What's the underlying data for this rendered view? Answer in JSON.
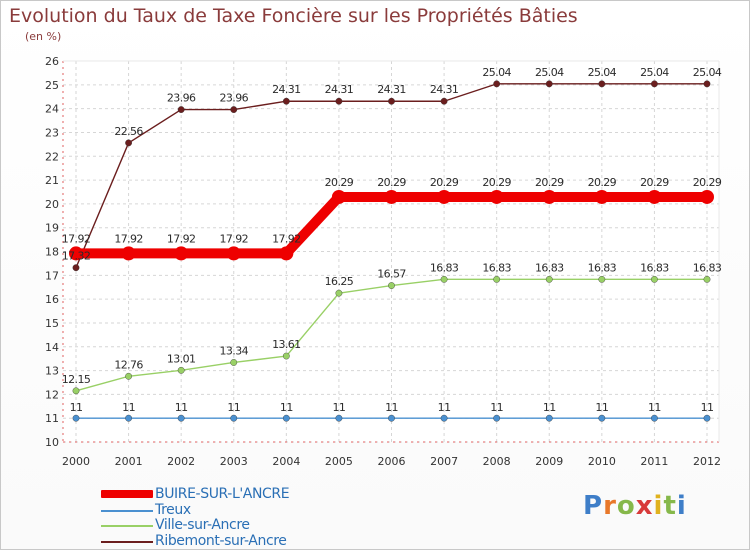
{
  "chart_data": {
    "type": "line",
    "title": "Evolution du Taux de Taxe Foncière sur les Propriétés Bâties",
    "ylabel": "(en %)",
    "xlabel": "",
    "ylim": [
      10,
      26
    ],
    "yticks": [
      "10",
      "11",
      "12",
      "13",
      "14",
      "15",
      "16",
      "17",
      "18",
      "19",
      "20",
      "21",
      "22",
      "23",
      "24",
      "25",
      "26"
    ],
    "x": [
      "2000",
      "2001",
      "2002",
      "2003",
      "2004",
      "2005",
      "2006",
      "2007",
      "2008",
      "2009",
      "2010",
      "2011",
      "2012"
    ],
    "grid": true,
    "legend_position": "bottom-left",
    "series": [
      {
        "name": "BUIRE-SUR-L'ANCRE",
        "color": "#ee0000",
        "values": [
          17.92,
          17.92,
          17.92,
          17.92,
          17.92,
          20.29,
          20.29,
          20.29,
          20.29,
          20.29,
          20.29,
          20.29,
          20.29
        ],
        "labels": [
          "17.92",
          "17.92",
          "17.92",
          "17.92",
          "17.92",
          "20.29",
          "20.29",
          "20.29",
          "20.29",
          "20.29",
          "20.29",
          "20.29",
          "20.29"
        ]
      },
      {
        "name": "Treux",
        "color": "#4a90d0",
        "values": [
          11,
          11,
          11,
          11,
          11,
          11,
          11,
          11,
          11,
          11,
          11,
          11,
          11
        ],
        "labels": [
          "11",
          "11",
          "11",
          "11",
          "11",
          "11",
          "11",
          "11",
          "11",
          "11",
          "11",
          "11",
          "11"
        ]
      },
      {
        "name": "Ville-sur-Ancre",
        "color": "#99d066",
        "values": [
          12.15,
          12.76,
          13.01,
          13.34,
          13.61,
          16.25,
          16.57,
          16.83,
          16.83,
          16.83,
          16.83,
          16.83,
          16.83
        ],
        "labels": [
          "12.15",
          "12.76",
          "13.01",
          "13.34",
          "13.61",
          "16.25",
          "16.57",
          "16.83",
          "16.83",
          "16.83",
          "16.83",
          "16.83",
          "16.83"
        ]
      },
      {
        "name": "Ribemont-sur-Ancre",
        "color": "#6b1e1e",
        "values": [
          17.32,
          22.56,
          23.96,
          23.96,
          24.31,
          24.31,
          24.31,
          24.31,
          25.04,
          25.04,
          25.04,
          25.04,
          25.04
        ],
        "labels": [
          "17.32",
          "22.56",
          "23.96",
          "23.96",
          "24.31",
          "24.31",
          "24.31",
          "24.31",
          "25.04",
          "25.04",
          "25.04",
          "25.04",
          "25.04"
        ]
      }
    ]
  },
  "logo": {
    "letters": [
      "P",
      "r",
      "o",
      "x",
      "i",
      "t",
      "i"
    ]
  }
}
